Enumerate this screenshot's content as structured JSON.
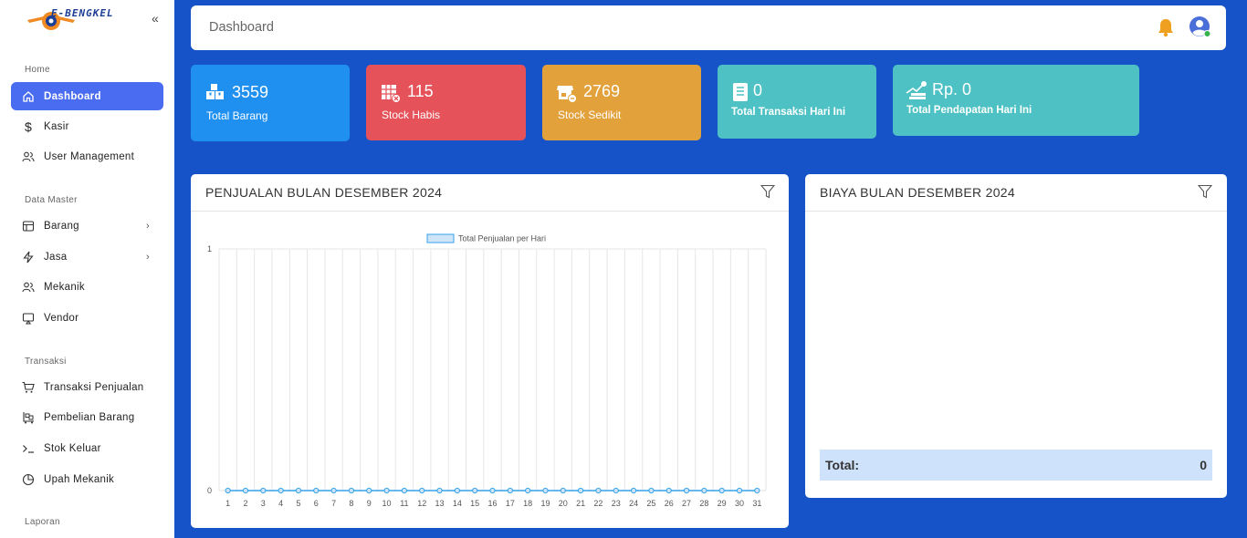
{
  "app": {
    "brand": "E-BENGKEL",
    "collapse_icon": "double-chevron-left-icon"
  },
  "topbar": {
    "title": "Dashboard"
  },
  "sidebar": {
    "sections": [
      {
        "label": "Home"
      },
      {
        "label": "Data Master"
      },
      {
        "label": "Transaksi"
      },
      {
        "label": "Laporan"
      }
    ],
    "items": [
      {
        "label": "Dashboard",
        "icon": "home-icon"
      },
      {
        "label": "Kasir",
        "icon": "dollar-icon"
      },
      {
        "label": "User Management",
        "icon": "users-icon"
      },
      {
        "label": "Barang",
        "icon": "table-icon"
      },
      {
        "label": "Jasa",
        "icon": "bolt-icon"
      },
      {
        "label": "Mekanik",
        "icon": "users-icon"
      },
      {
        "label": "Vendor",
        "icon": "monitor-icon"
      },
      {
        "label": "Transaksi Penjualan",
        "icon": "cart-icon"
      },
      {
        "label": "Pembelian Barang",
        "icon": "trolley-icon"
      },
      {
        "label": "Stok Keluar",
        "icon": "terminal-icon"
      },
      {
        "label": "Upah Mekanik",
        "icon": "pie-icon"
      }
    ]
  },
  "cards": [
    {
      "value": "3559",
      "label": "Total Barang",
      "color": "#1f8ff0",
      "icon": "boxes-icon"
    },
    {
      "value": "115",
      "label": "Stock Habis",
      "color": "#e5525a",
      "icon": "warehouse-x-icon"
    },
    {
      "value": "2769",
      "label": "Stock Sedikit",
      "color": "#e2a13b",
      "icon": "shop-icon"
    },
    {
      "value": "0",
      "label": "Total Transaksi Hari Ini",
      "color": "#4ec1c4",
      "icon": "receipt-icon"
    },
    {
      "value": "Rp. 0",
      "label": "Total Pendapatan Hari Ini",
      "color": "#4ec1c4",
      "icon": "money-stack-icon"
    }
  ],
  "sales_panel": {
    "title": "PENJUALAN BULAN DESEMBER 2024"
  },
  "cost_panel": {
    "title": "BIAYA BULAN DESEMBER 2024",
    "total_label": "Total:",
    "total_value": "0"
  },
  "chart_data": {
    "type": "line",
    "title": "",
    "legend": "Total Penjualan per Hari",
    "legend_position": "top",
    "x": [
      "1",
      "2",
      "3",
      "4",
      "5",
      "6",
      "7",
      "8",
      "9",
      "10",
      "11",
      "12",
      "13",
      "14",
      "15",
      "16",
      "17",
      "18",
      "19",
      "20",
      "21",
      "22",
      "23",
      "24",
      "25",
      "26",
      "27",
      "28",
      "29",
      "30",
      "31"
    ],
    "series": [
      {
        "name": "Total Penjualan per Hari",
        "values": [
          0,
          0,
          0,
          0,
          0,
          0,
          0,
          0,
          0,
          0,
          0,
          0,
          0,
          0,
          0,
          0,
          0,
          0,
          0,
          0,
          0,
          0,
          0,
          0,
          0,
          0,
          0,
          0,
          0,
          0,
          0
        ]
      }
    ],
    "ylim": [
      0,
      1
    ],
    "yticks": [
      "0",
      "1"
    ],
    "grid": true,
    "color": "#36a2eb"
  }
}
